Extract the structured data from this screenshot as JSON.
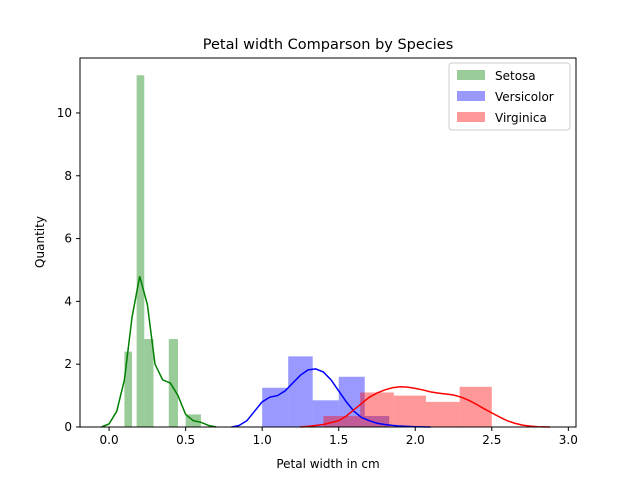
{
  "chart_data": {
    "type": "bar",
    "title": "Petal width Comparson by Species",
    "xlabel": "Petal width in cm",
    "ylabel": "Quantity",
    "xlim": [
      -0.19,
      3.05
    ],
    "ylim": [
      0,
      11.75
    ],
    "xticks": [
      "0.0",
      "0.5",
      "1.0",
      "1.5",
      "2.0",
      "2.5",
      "3.0"
    ],
    "yticks": [
      "0",
      "2",
      "4",
      "6",
      "8",
      "10"
    ],
    "grid": false,
    "legend_position": "top-right",
    "series": [
      {
        "name": "Setosa",
        "color": "#008000",
        "bins": [
          {
            "x0": 0.1,
            "x1": 0.15,
            "value": 2.4
          },
          {
            "x0": 0.18,
            "x1": 0.23,
            "value": 11.2
          },
          {
            "x0": 0.23,
            "x1": 0.29,
            "value": 2.8
          },
          {
            "x0": 0.39,
            "x1": 0.45,
            "value": 2.8
          },
          {
            "x0": 0.5,
            "x1": 0.6,
            "value": 0.4
          }
        ],
        "kde": [
          [
            -0.05,
            0.0
          ],
          [
            0.0,
            0.1
          ],
          [
            0.05,
            0.5
          ],
          [
            0.1,
            1.5
          ],
          [
            0.15,
            3.5
          ],
          [
            0.2,
            4.8
          ],
          [
            0.25,
            3.9
          ],
          [
            0.3,
            2.0
          ],
          [
            0.35,
            1.5
          ],
          [
            0.4,
            1.4
          ],
          [
            0.45,
            1.0
          ],
          [
            0.5,
            0.4
          ],
          [
            0.55,
            0.2
          ],
          [
            0.6,
            0.15
          ],
          [
            0.65,
            0.05
          ],
          [
            0.7,
            0.0
          ]
        ]
      },
      {
        "name": "Versicolor",
        "color": "#0000ff",
        "bins": [
          {
            "x0": 1.0,
            "x1": 1.17,
            "value": 1.25
          },
          {
            "x0": 1.17,
            "x1": 1.33,
            "value": 2.25
          },
          {
            "x0": 1.33,
            "x1": 1.5,
            "value": 0.85
          },
          {
            "x0": 1.5,
            "x1": 1.67,
            "value": 1.6
          },
          {
            "x0": 1.67,
            "x1": 1.83,
            "value": 0.35
          }
        ],
        "kde": [
          [
            0.8,
            0.0
          ],
          [
            0.85,
            0.05
          ],
          [
            0.9,
            0.2
          ],
          [
            0.95,
            0.5
          ],
          [
            1.0,
            0.8
          ],
          [
            1.05,
            0.95
          ],
          [
            1.1,
            1.0
          ],
          [
            1.15,
            1.15
          ],
          [
            1.2,
            1.4
          ],
          [
            1.25,
            1.65
          ],
          [
            1.3,
            1.82
          ],
          [
            1.35,
            1.85
          ],
          [
            1.4,
            1.75
          ],
          [
            1.45,
            1.5
          ],
          [
            1.5,
            1.15
          ],
          [
            1.55,
            0.8
          ],
          [
            1.6,
            0.5
          ],
          [
            1.65,
            0.3
          ],
          [
            1.7,
            0.2
          ],
          [
            1.75,
            0.12
          ],
          [
            1.8,
            0.08
          ],
          [
            1.85,
            0.05
          ],
          [
            1.9,
            0.03
          ],
          [
            2.0,
            0.01
          ],
          [
            2.1,
            0.0
          ]
        ]
      },
      {
        "name": "Virginica",
        "color": "#ff0000",
        "bins": [
          {
            "x0": 1.4,
            "x1": 1.64,
            "value": 0.35
          },
          {
            "x0": 1.64,
            "x1": 1.86,
            "value": 1.1
          },
          {
            "x0": 1.86,
            "x1": 2.07,
            "value": 1.0
          },
          {
            "x0": 2.07,
            "x1": 2.29,
            "value": 0.8
          },
          {
            "x0": 2.29,
            "x1": 2.5,
            "value": 1.28
          }
        ],
        "kde": [
          [
            1.25,
            0.0
          ],
          [
            1.3,
            0.02
          ],
          [
            1.4,
            0.08
          ],
          [
            1.5,
            0.2
          ],
          [
            1.55,
            0.35
          ],
          [
            1.6,
            0.55
          ],
          [
            1.65,
            0.75
          ],
          [
            1.7,
            0.95
          ],
          [
            1.75,
            1.08
          ],
          [
            1.8,
            1.18
          ],
          [
            1.85,
            1.25
          ],
          [
            1.9,
            1.28
          ],
          [
            1.95,
            1.27
          ],
          [
            2.0,
            1.23
          ],
          [
            2.05,
            1.18
          ],
          [
            2.1,
            1.12
          ],
          [
            2.15,
            1.08
          ],
          [
            2.2,
            1.05
          ],
          [
            2.25,
            1.02
          ],
          [
            2.3,
            0.95
          ],
          [
            2.35,
            0.85
          ],
          [
            2.4,
            0.72
          ],
          [
            2.45,
            0.58
          ],
          [
            2.5,
            0.45
          ],
          [
            2.55,
            0.32
          ],
          [
            2.6,
            0.2
          ],
          [
            2.65,
            0.12
          ],
          [
            2.7,
            0.06
          ],
          [
            2.75,
            0.03
          ],
          [
            2.8,
            0.01
          ],
          [
            2.88,
            0.0
          ]
        ]
      }
    ]
  }
}
